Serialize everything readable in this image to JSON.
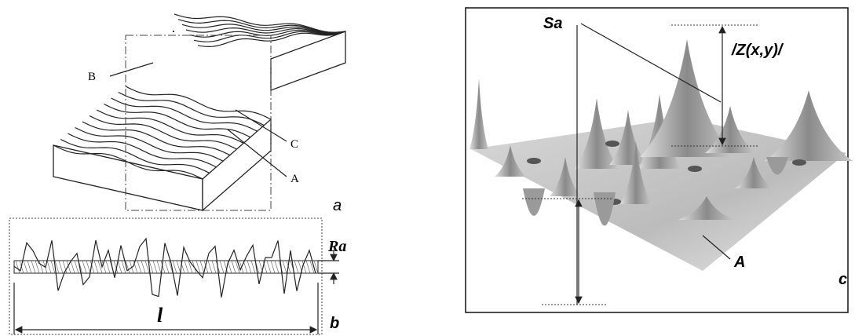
{
  "panel_a": {
    "label_b": "B",
    "label_c": "C",
    "label_a": "A",
    "panel_label": "a"
  },
  "panel_b": {
    "label_ra": "Ra",
    "label_l": "l",
    "panel_label": "b"
  },
  "panel_c": {
    "label_sa": "Sa",
    "label_z": "/Z(x,y)/",
    "label_a": "A",
    "panel_label": "c"
  }
}
